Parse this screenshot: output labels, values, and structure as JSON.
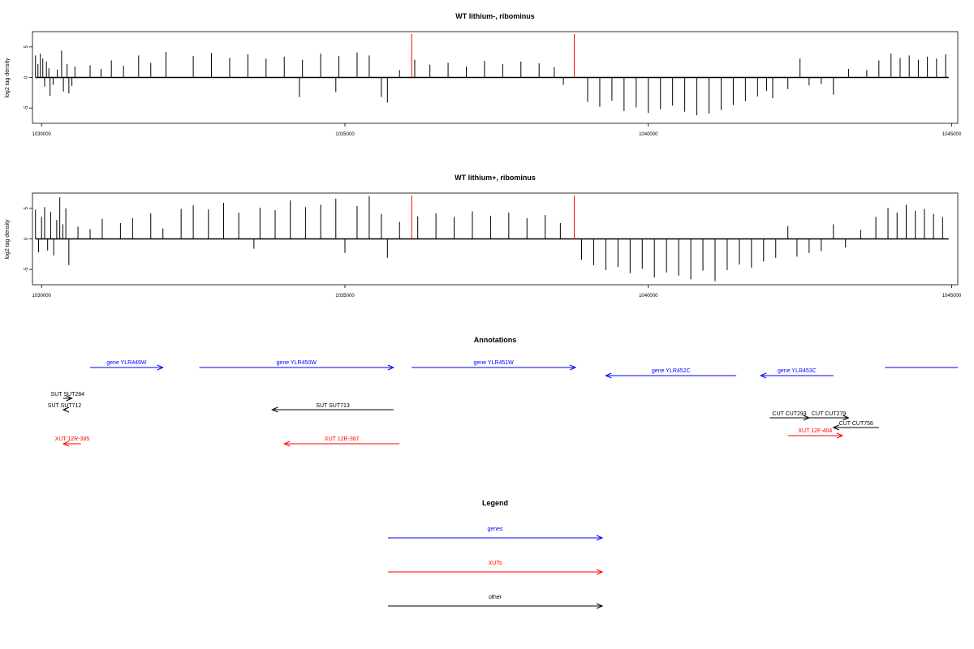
{
  "chart_data": [
    {
      "type": "bar",
      "title": "WT lithium-, ribominus",
      "ylabel": "log2 tag density",
      "xlabel": "",
      "xlim": [
        1029850,
        1045100
      ],
      "ylim": [
        -7.5,
        7.5
      ],
      "x_ticks": [
        1030000,
        1035000,
        1040000,
        1045000
      ],
      "y_ticks": [
        -5,
        0,
        5
      ],
      "markers": [
        1036100,
        1038780
      ],
      "marker_color": "#ff0000",
      "series": [
        {
          "values": [
            [
              1029900,
              3.6
            ],
            [
              1029940,
              2.2
            ],
            [
              1029980,
              3.9
            ],
            [
              1030020,
              3.1
            ],
            [
              1030050,
              -1.5
            ],
            [
              1030080,
              2.6
            ],
            [
              1030120,
              1.5
            ],
            [
              1030140,
              -3.0
            ],
            [
              1030190,
              -1.2
            ],
            [
              1030260,
              1.3
            ],
            [
              1030330,
              4.4
            ],
            [
              1030360,
              -2.3
            ],
            [
              1030420,
              2.2
            ],
            [
              1030450,
              -2.6
            ],
            [
              1030500,
              -1.4
            ],
            [
              1030550,
              1.8
            ],
            [
              1030800,
              2.0
            ],
            [
              1030980,
              1.4
            ],
            [
              1031150,
              2.8
            ],
            [
              1031350,
              1.9
            ],
            [
              1031600,
              3.6
            ],
            [
              1031800,
              2.4
            ],
            [
              1032050,
              4.2
            ],
            [
              1032500,
              3.5
            ],
            [
              1032800,
              4.0
            ],
            [
              1033100,
              3.2
            ],
            [
              1033400,
              3.8
            ],
            [
              1033700,
              3.1
            ],
            [
              1034000,
              3.4
            ],
            [
              1034250,
              -3.2
            ],
            [
              1034300,
              2.9
            ],
            [
              1034600,
              3.9
            ],
            [
              1034850,
              -2.4
            ],
            [
              1034900,
              3.5
            ],
            [
              1035200,
              4.1
            ],
            [
              1035400,
              3.6
            ],
            [
              1035600,
              -3.2
            ],
            [
              1035700,
              -4.1
            ],
            [
              1035900,
              1.2
            ],
            [
              1036150,
              2.9
            ],
            [
              1036400,
              2.1
            ],
            [
              1036700,
              2.4
            ],
            [
              1037000,
              1.8
            ],
            [
              1037300,
              2.7
            ],
            [
              1037600,
              2.2
            ],
            [
              1037900,
              2.6
            ],
            [
              1038200,
              2.3
            ],
            [
              1038450,
              1.7
            ],
            [
              1038600,
              -1.2
            ],
            [
              1039000,
              -4.0
            ],
            [
              1039200,
              -4.8
            ],
            [
              1039400,
              -3.8
            ],
            [
              1039600,
              -5.5
            ],
            [
              1039800,
              -4.9
            ],
            [
              1040000,
              -5.8
            ],
            [
              1040200,
              -5.2
            ],
            [
              1040400,
              -4.6
            ],
            [
              1040600,
              -5.6
            ],
            [
              1040800,
              -6.2
            ],
            [
              1041000,
              -5.9
            ],
            [
              1041200,
              -5.3
            ],
            [
              1041400,
              -4.5
            ],
            [
              1041600,
              -3.9
            ],
            [
              1041800,
              -3.1
            ],
            [
              1041950,
              -2.2
            ],
            [
              1042050,
              -3.4
            ],
            [
              1042300,
              -1.9
            ],
            [
              1042500,
              3.1
            ],
            [
              1042650,
              -1.3
            ],
            [
              1042850,
              -1.1
            ],
            [
              1043050,
              -2.8
            ],
            [
              1043300,
              1.4
            ],
            [
              1043600,
              1.2
            ],
            [
              1043800,
              2.8
            ],
            [
              1044000,
              3.9
            ],
            [
              1044150,
              3.2
            ],
            [
              1044300,
              3.6
            ],
            [
              1044450,
              2.9
            ],
            [
              1044600,
              3.4
            ],
            [
              1044750,
              3.1
            ],
            [
              1044900,
              3.8
            ]
          ]
        }
      ]
    },
    {
      "type": "bar",
      "title": "WT lithium+, ribominus",
      "ylabel": "log2 tag density",
      "xlabel": "",
      "xlim": [
        1029850,
        1045100
      ],
      "ylim": [
        -7.5,
        7.5
      ],
      "x_ticks": [
        1030000,
        1035000,
        1040000,
        1045000
      ],
      "y_ticks": [
        -5,
        0,
        5
      ],
      "markers": [
        1036100,
        1038780
      ],
      "marker_color": "#ff0000",
      "series": [
        {
          "values": [
            [
              1029900,
              4.8
            ],
            [
              1029950,
              -2.2
            ],
            [
              1030000,
              3.6
            ],
            [
              1030050,
              5.2
            ],
            [
              1030100,
              -1.9
            ],
            [
              1030150,
              4.4
            ],
            [
              1030200,
              -2.7
            ],
            [
              1030250,
              3.1
            ],
            [
              1030300,
              6.8
            ],
            [
              1030350,
              2.4
            ],
            [
              1030400,
              5.0
            ],
            [
              1030450,
              -4.3
            ],
            [
              1030600,
              2.0
            ],
            [
              1030800,
              1.6
            ],
            [
              1031000,
              3.3
            ],
            [
              1031300,
              2.6
            ],
            [
              1031500,
              3.4
            ],
            [
              1031800,
              4.2
            ],
            [
              1032000,
              1.7
            ],
            [
              1032300,
              4.9
            ],
            [
              1032500,
              5.5
            ],
            [
              1032750,
              4.8
            ],
            [
              1033000,
              5.9
            ],
            [
              1033250,
              4.3
            ],
            [
              1033500,
              -1.6
            ],
            [
              1033600,
              5.1
            ],
            [
              1033850,
              4.7
            ],
            [
              1034100,
              6.3
            ],
            [
              1034350,
              5.2
            ],
            [
              1034600,
              5.6
            ],
            [
              1034850,
              6.6
            ],
            [
              1035000,
              -2.3
            ],
            [
              1035200,
              5.4
            ],
            [
              1035400,
              7.0
            ],
            [
              1035600,
              4.1
            ],
            [
              1035700,
              -3.1
            ],
            [
              1035900,
              2.8
            ],
            [
              1036200,
              3.7
            ],
            [
              1036500,
              4.2
            ],
            [
              1036800,
              3.6
            ],
            [
              1037100,
              4.5
            ],
            [
              1037400,
              3.8
            ],
            [
              1037700,
              4.3
            ],
            [
              1038000,
              3.4
            ],
            [
              1038300,
              3.9
            ],
            [
              1038550,
              2.6
            ],
            [
              1038900,
              -3.4
            ],
            [
              1039100,
              -4.3
            ],
            [
              1039300,
              -5.1
            ],
            [
              1039500,
              -4.6
            ],
            [
              1039700,
              -5.6
            ],
            [
              1039900,
              -4.9
            ],
            [
              1040100,
              -6.3
            ],
            [
              1040300,
              -5.5
            ],
            [
              1040500,
              -6.0
            ],
            [
              1040700,
              -6.6
            ],
            [
              1040900,
              -5.2
            ],
            [
              1041100,
              -6.9
            ],
            [
              1041300,
              -5.1
            ],
            [
              1041500,
              -4.2
            ],
            [
              1041700,
              -4.7
            ],
            [
              1041900,
              -3.7
            ],
            [
              1042100,
              -3.1
            ],
            [
              1042300,
              2.1
            ],
            [
              1042450,
              -2.9
            ],
            [
              1042650,
              -2.3
            ],
            [
              1042850,
              -2.0
            ],
            [
              1043050,
              2.4
            ],
            [
              1043250,
              -1.4
            ],
            [
              1043500,
              1.5
            ],
            [
              1043750,
              3.6
            ],
            [
              1043950,
              5.1
            ],
            [
              1044100,
              4.3
            ],
            [
              1044250,
              5.6
            ],
            [
              1044400,
              4.6
            ],
            [
              1044550,
              4.9
            ],
            [
              1044700,
              4.1
            ],
            [
              1044850,
              3.6
            ]
          ]
        }
      ]
    }
  ],
  "annotations": {
    "title": "Annotations",
    "genes": [
      {
        "label": "gene YLR449W",
        "start": 1030800,
        "end": 1032000,
        "strand": "+"
      },
      {
        "label": "gene YLR450W",
        "start": 1032600,
        "end": 1035800,
        "strand": "+"
      },
      {
        "label": "gene YLR451W",
        "start": 1036100,
        "end": 1038800,
        "strand": "+"
      },
      {
        "label": "gene YLR452C",
        "start": 1039300,
        "end": 1041450,
        "strand": "-"
      },
      {
        "label": "gene YLR453C",
        "start": 1041850,
        "end": 1043050,
        "strand": "-"
      },
      {
        "label": "",
        "start": 1043900,
        "end": 1045100,
        "strand": "+"
      }
    ],
    "others": [
      {
        "label": "SUT SUT284",
        "start": 1029850,
        "end": 1030500,
        "strand": "+"
      },
      {
        "label": "SUT SUT712",
        "start": 1029750,
        "end": 1030400,
        "strand": "-"
      },
      {
        "label": "SUT SUT713",
        "start": 1033800,
        "end": 1035800,
        "strand": "-"
      },
      {
        "label": "CUT CUT293",
        "start": 1042000,
        "end": 1042650,
        "strand": "+"
      },
      {
        "label": "CUT CUT279",
        "start": 1042650,
        "end": 1043300,
        "strand": "+"
      },
      {
        "label": "CUT CUT756",
        "start": 1043050,
        "end": 1043800,
        "strand": "-"
      }
    ],
    "xuts": [
      {
        "label": "XUT 12R-385",
        "start": 1029850,
        "end": 1030650,
        "strand": "-"
      },
      {
        "label": "XUT 12R-387",
        "start": 1034000,
        "end": 1035900,
        "strand": "-"
      },
      {
        "label": "XUT 12F-404",
        "start": 1042300,
        "end": 1043200,
        "strand": "+"
      }
    ]
  },
  "legend": {
    "title": "Legend",
    "items": [
      {
        "label": "genes",
        "color": "#0000ff"
      },
      {
        "label": "XUTs",
        "color": "#ff0000"
      },
      {
        "label": "other",
        "color": "#000000"
      }
    ]
  },
  "colors": {
    "genes": "#0000ff",
    "xuts": "#ff0000",
    "other": "#000000"
  }
}
